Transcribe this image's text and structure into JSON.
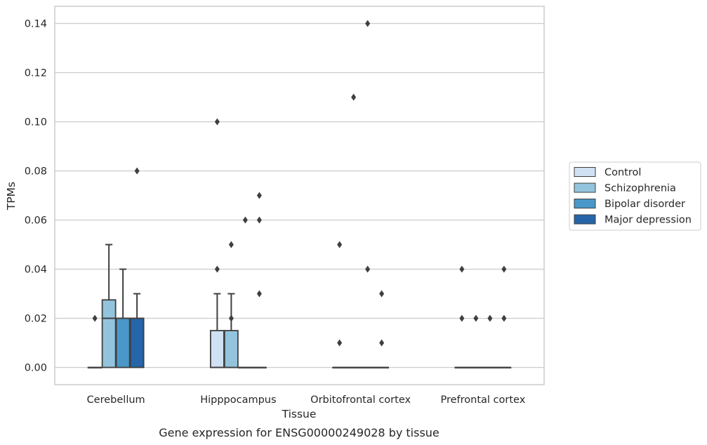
{
  "chart_data": {
    "type": "boxplot",
    "title": "",
    "caption": "Gene expression for ENSG00000249028 by tissue",
    "xlabel": "Tissue",
    "ylabel": "TPMs",
    "ylim": [
      -0.007,
      0.147
    ],
    "yticks": [
      "0.00",
      "0.02",
      "0.04",
      "0.06",
      "0.08",
      "0.10",
      "0.12",
      "0.14"
    ],
    "ytick_values": [
      0,
      0.02,
      0.04,
      0.06,
      0.08,
      0.1,
      0.12,
      0.14
    ],
    "grid": "horizontal",
    "legend_position": "right",
    "categories": [
      "Cerebellum",
      "Hipppocampus",
      "Orbitofrontal cortex",
      "Prefrontal cortex"
    ],
    "series": [
      {
        "name": "Control",
        "color": "#cfe1f2",
        "boxes": [
          {
            "q1": 0,
            "median": 0,
            "q3": 0,
            "whisker_low": 0,
            "whisker_high": 0,
            "outliers": [
              0.02
            ]
          },
          {
            "q1": 0,
            "median": 0,
            "q3": 0.015,
            "whisker_low": 0,
            "whisker_high": 0.03,
            "outliers": [
              0.04,
              0.1
            ]
          },
          {
            "q1": 0,
            "median": 0,
            "q3": 0,
            "whisker_low": 0,
            "whisker_high": 0,
            "outliers": [
              0.01,
              0.05
            ]
          },
          {
            "q1": 0,
            "median": 0,
            "q3": 0,
            "whisker_low": 0,
            "whisker_high": 0,
            "outliers": [
              0.02,
              0.04
            ]
          }
        ]
      },
      {
        "name": "Schizophrenia",
        "color": "#93c4de",
        "boxes": [
          {
            "q1": 0,
            "median": 0.02,
            "q3": 0.0275,
            "whisker_low": 0,
            "whisker_high": 0.05,
            "outliers": []
          },
          {
            "q1": 0,
            "median": 0,
            "q3": 0.015,
            "whisker_low": 0,
            "whisker_high": 0.03,
            "outliers": [
              0.02,
              0.05
            ]
          },
          {
            "q1": 0,
            "median": 0,
            "q3": 0,
            "whisker_low": 0,
            "whisker_high": 0,
            "outliers": [
              0.11
            ]
          },
          {
            "q1": 0,
            "median": 0,
            "q3": 0,
            "whisker_low": 0,
            "whisker_high": 0,
            "outliers": [
              0.02
            ]
          }
        ]
      },
      {
        "name": "Bipolar disorder",
        "color": "#4a98c9",
        "boxes": [
          {
            "q1": 0,
            "median": 0.02,
            "q3": 0.02,
            "whisker_low": 0,
            "whisker_high": 0.04,
            "outliers": []
          },
          {
            "q1": 0,
            "median": 0,
            "q3": 0,
            "whisker_low": 0,
            "whisker_high": 0,
            "outliers": [
              0.06
            ]
          },
          {
            "q1": 0,
            "median": 0,
            "q3": 0,
            "whisker_low": 0,
            "whisker_high": 0,
            "outliers": [
              0.04,
              0.14
            ]
          },
          {
            "q1": 0,
            "median": 0,
            "q3": 0,
            "whisker_low": 0,
            "whisker_high": 0,
            "outliers": [
              0.02
            ]
          }
        ]
      },
      {
        "name": "Major depression",
        "color": "#2565a8",
        "boxes": [
          {
            "q1": 0,
            "median": 0.02,
            "q3": 0.02,
            "whisker_low": 0,
            "whisker_high": 0.03,
            "outliers": [
              0.08
            ]
          },
          {
            "q1": 0,
            "median": 0,
            "q3": 0,
            "whisker_low": 0,
            "whisker_high": 0,
            "outliers": [
              0.03,
              0.06,
              0.07
            ]
          },
          {
            "q1": 0,
            "median": 0,
            "q3": 0,
            "whisker_low": 0,
            "whisker_high": 0,
            "outliers": [
              0.01,
              0.03
            ]
          },
          {
            "q1": 0,
            "median": 0,
            "q3": 0,
            "whisker_low": 0,
            "whisker_high": 0,
            "outliers": [
              0.02,
              0.04
            ]
          }
        ]
      }
    ]
  }
}
